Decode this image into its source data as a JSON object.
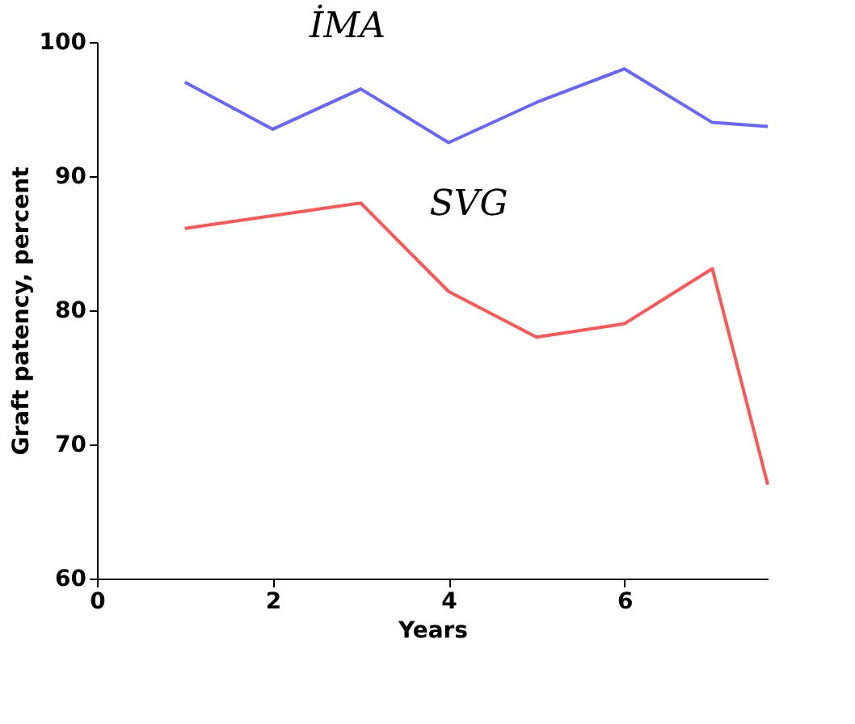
{
  "chart_data": {
    "type": "line",
    "xlabel": "Years",
    "ylabel": "Graft patency, percent",
    "xlim": [
      0,
      7.63
    ],
    "xticks": [
      0,
      2,
      4,
      6
    ],
    "ylim": [
      60,
      100
    ],
    "yticks": [
      60,
      70,
      80,
      90,
      100
    ],
    "grid": false,
    "marker": "none",
    "line_style": "solid",
    "series": [
      {
        "color": "#6666ff",
        "x": [
          1,
          2,
          3,
          4,
          5,
          6,
          7,
          7.63
        ],
        "values": [
          97,
          93.5,
          96.5,
          92.5,
          95.5,
          98,
          94,
          93.7
        ]
      },
      {
        "color": "#ff5555",
        "x": [
          1,
          3,
          4,
          5,
          6,
          7,
          7.63
        ],
        "values": [
          86.1,
          88,
          81.4,
          78,
          79,
          83.1,
          67
        ]
      }
    ],
    "annotations": [
      "İMA",
      "SVG"
    ]
  }
}
